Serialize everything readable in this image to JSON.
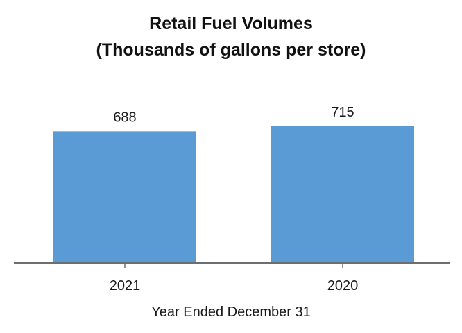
{
  "chart_data": {
    "type": "bar",
    "title": "Retail Fuel Volumes",
    "subtitle": "(Thousands of gallons per store)",
    "categories": [
      "2021",
      "2020"
    ],
    "values": [
      688,
      715
    ],
    "xlabel": "Year Ended December 31",
    "ylabel": "",
    "ylim": [
      0,
      1375
    ],
    "grid": false,
    "legend": "none",
    "bar_color": "#5b9bd5",
    "axis_color": "#6e6e6e"
  }
}
